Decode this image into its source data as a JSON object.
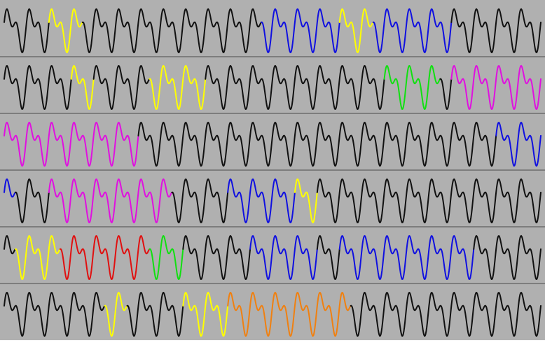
{
  "diagram": {
    "background_color": "#b0b0b0",
    "divider_color": "#4a4a4a",
    "default_stroke": "#111111",
    "waves_per_row": 24,
    "colors": {
      "K": "#111111",
      "Y": "#ffff00",
      "B": "#1010e0",
      "G": "#10e010",
      "M": "#e010e0",
      "R": "#e01010",
      "O": "#f08010"
    },
    "rows": [
      {
        "name": "row-1",
        "segments": [
          {
            "color": "K",
            "waves": 2
          },
          {
            "color": "Y",
            "waves": 1.5
          },
          {
            "color": "K",
            "waves": 8
          },
          {
            "color": "B",
            "waves": 3.5
          },
          {
            "color": "Y",
            "waves": 1.5
          },
          {
            "color": "B",
            "waves": 3.5
          },
          {
            "color": "K",
            "waves": 4
          }
        ]
      },
      {
        "name": "row-2",
        "segments": [
          {
            "color": "K",
            "waves": 3
          },
          {
            "color": "Y",
            "waves": 1
          },
          {
            "color": "K",
            "waves": 2.5
          },
          {
            "color": "Y",
            "waves": 2.5
          },
          {
            "color": "K",
            "waves": 8
          },
          {
            "color": "G",
            "waves": 2.5
          },
          {
            "color": "K",
            "waves": 0.5
          },
          {
            "color": "M",
            "waves": 4
          }
        ]
      },
      {
        "name": "row-3",
        "segments": [
          {
            "color": "M",
            "waves": 6
          },
          {
            "color": "K",
            "waves": 16
          },
          {
            "color": "B",
            "waves": 2
          }
        ]
      },
      {
        "name": "row-4",
        "segments": [
          {
            "color": "B",
            "waves": 0.5
          },
          {
            "color": "K",
            "waves": 1.5
          },
          {
            "color": "M",
            "waves": 5.5
          },
          {
            "color": "K",
            "waves": 2.5
          },
          {
            "color": "B",
            "waves": 3
          },
          {
            "color": "Y",
            "waves": 1
          },
          {
            "color": "K",
            "waves": 10
          }
        ]
      },
      {
        "name": "row-5",
        "segments": [
          {
            "color": "K",
            "waves": 0.5
          },
          {
            "color": "Y",
            "waves": 2
          },
          {
            "color": "R",
            "waves": 4
          },
          {
            "color": "G",
            "waves": 1.5
          },
          {
            "color": "K",
            "waves": 3
          },
          {
            "color": "B",
            "waves": 3
          },
          {
            "color": "K",
            "waves": 1
          },
          {
            "color": "B",
            "waves": 6
          },
          {
            "color": "K",
            "waves": 3
          }
        ]
      },
      {
        "name": "row-6",
        "segments": [
          {
            "color": "K",
            "waves": 4.5
          },
          {
            "color": "Y",
            "waves": 1
          },
          {
            "color": "K",
            "waves": 2.5
          },
          {
            "color": "Y",
            "waves": 2
          },
          {
            "color": "O",
            "waves": 5.5
          },
          {
            "color": "K",
            "waves": 8.5
          }
        ]
      }
    ]
  }
}
